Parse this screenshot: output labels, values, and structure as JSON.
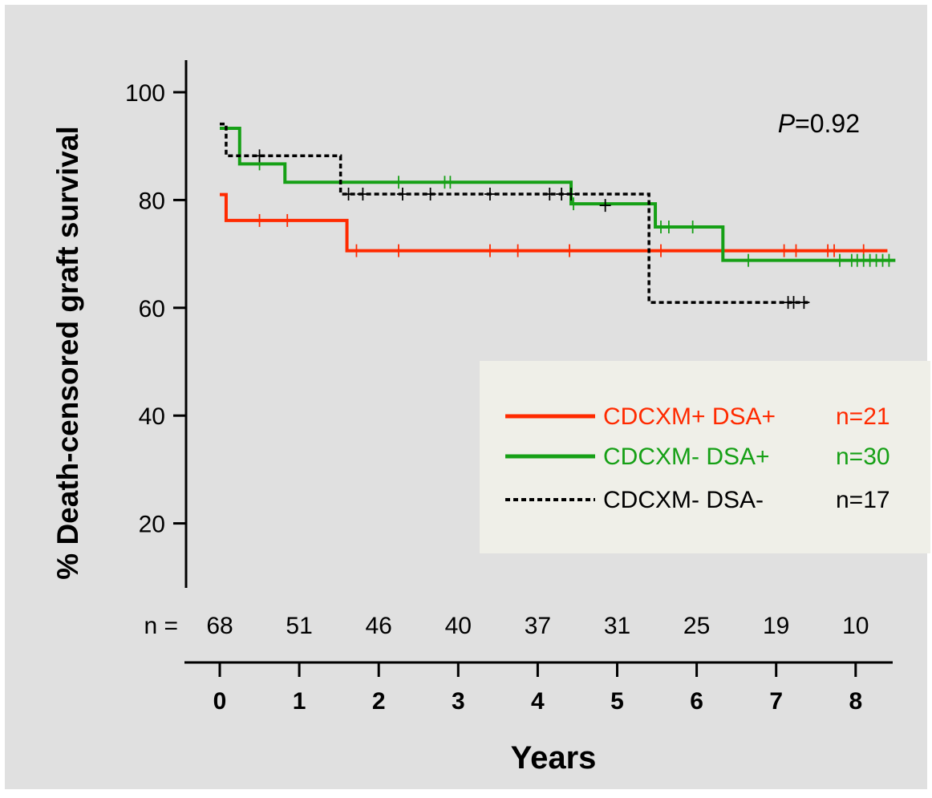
{
  "colors": {
    "background": "#E0E0E0",
    "legend_box": "#EFEFE8",
    "axis": "#000000",
    "series_red": "#FF2A00",
    "series_green": "#16A016",
    "series_black": "#000000"
  },
  "chart_data": {
    "type": "line",
    "subtype": "kaplan-meier",
    "xlabel": "Years",
    "ylabel": "% Death-censored graft survival",
    "xlim": [
      0,
      8.4
    ],
    "ylim": [
      7,
      106
    ],
    "x_ticks": [
      0,
      1,
      2,
      3,
      4,
      5,
      6,
      7,
      8
    ],
    "y_ticks": [
      20,
      40,
      60,
      80,
      100
    ],
    "grid": false,
    "annotation": {
      "prefix": "P",
      "text": "=0.92"
    },
    "at_risk": {
      "label": "n =",
      "x": [
        0,
        1,
        2,
        3,
        4,
        5,
        6,
        7,
        8
      ],
      "counts": [
        "68",
        "51",
        "46",
        "40",
        "37",
        "31",
        "25",
        "19",
        "10"
      ]
    },
    "legend": {
      "position": "lower-right",
      "entries": [
        {
          "series": 0,
          "label": "CDCXM+ DSA+",
          "n": "n=21"
        },
        {
          "series": 1,
          "label": "CDCXM-  DSA+",
          "n": "n=30"
        },
        {
          "series": 2,
          "label": "CDCXM-  DSA-",
          "n": "n=17"
        }
      ]
    },
    "series": [
      {
        "name": "CDCXM+ DSA+",
        "color": "#FF2A00",
        "style": "solid",
        "steps": [
          [
            0,
            81
          ],
          [
            0.08,
            76.2
          ],
          [
            1.6,
            70.6
          ],
          [
            8.4,
            70.6
          ]
        ],
        "censored": [
          [
            0.5,
            76.2
          ],
          [
            0.85,
            76.2
          ],
          [
            1.72,
            70.6
          ],
          [
            2.25,
            70.6
          ],
          [
            3.4,
            70.6
          ],
          [
            3.75,
            70.6
          ],
          [
            4.4,
            70.6
          ],
          [
            5.55,
            70.6
          ],
          [
            7.1,
            70.6
          ],
          [
            7.25,
            70.6
          ],
          [
            7.65,
            70.6
          ],
          [
            7.73,
            70.6
          ],
          [
            8.1,
            70.6
          ]
        ]
      },
      {
        "name": "CDCXM-  DSA+",
        "color": "#16A016",
        "style": "solid",
        "steps": [
          [
            0,
            93.3
          ],
          [
            0.25,
            86.7
          ],
          [
            0.82,
            83.3
          ],
          [
            4.42,
            79.3
          ],
          [
            5.48,
            75
          ],
          [
            6.33,
            68.8
          ],
          [
            8.5,
            68.8
          ]
        ],
        "censored": [
          [
            0.5,
            86.7
          ],
          [
            2.25,
            83.3
          ],
          [
            2.83,
            83.3
          ],
          [
            2.9,
            83.3
          ],
          [
            4.45,
            79.3
          ],
          [
            5.55,
            75
          ],
          [
            5.65,
            75
          ],
          [
            5.95,
            75
          ],
          [
            6.65,
            68.8
          ],
          [
            7.8,
            68.8
          ],
          [
            7.95,
            68.8
          ],
          [
            8.02,
            68.8
          ],
          [
            8.1,
            68.8
          ],
          [
            8.18,
            68.8
          ],
          [
            8.26,
            68.8
          ],
          [
            8.34,
            68.8
          ],
          [
            8.42,
            68.8
          ]
        ]
      },
      {
        "name": "CDCXM-  DSA-",
        "color": "#000000",
        "style": "dotted",
        "steps": [
          [
            0,
            94.1
          ],
          [
            0.08,
            88.2
          ],
          [
            1.52,
            81.1
          ],
          [
            5.4,
            61
          ],
          [
            7.4,
            61
          ]
        ],
        "censored": [
          [
            0.5,
            88.2
          ],
          [
            1.62,
            81.1
          ],
          [
            1.8,
            81.1
          ],
          [
            2.3,
            81.1
          ],
          [
            2.65,
            81.1
          ],
          [
            3.4,
            81.1
          ],
          [
            4.15,
            81.1
          ],
          [
            4.3,
            81.1
          ],
          [
            4.42,
            81.1
          ],
          [
            4.85,
            79
          ],
          [
            7.15,
            61
          ],
          [
            7.22,
            61
          ],
          [
            7.35,
            61
          ]
        ]
      }
    ]
  }
}
